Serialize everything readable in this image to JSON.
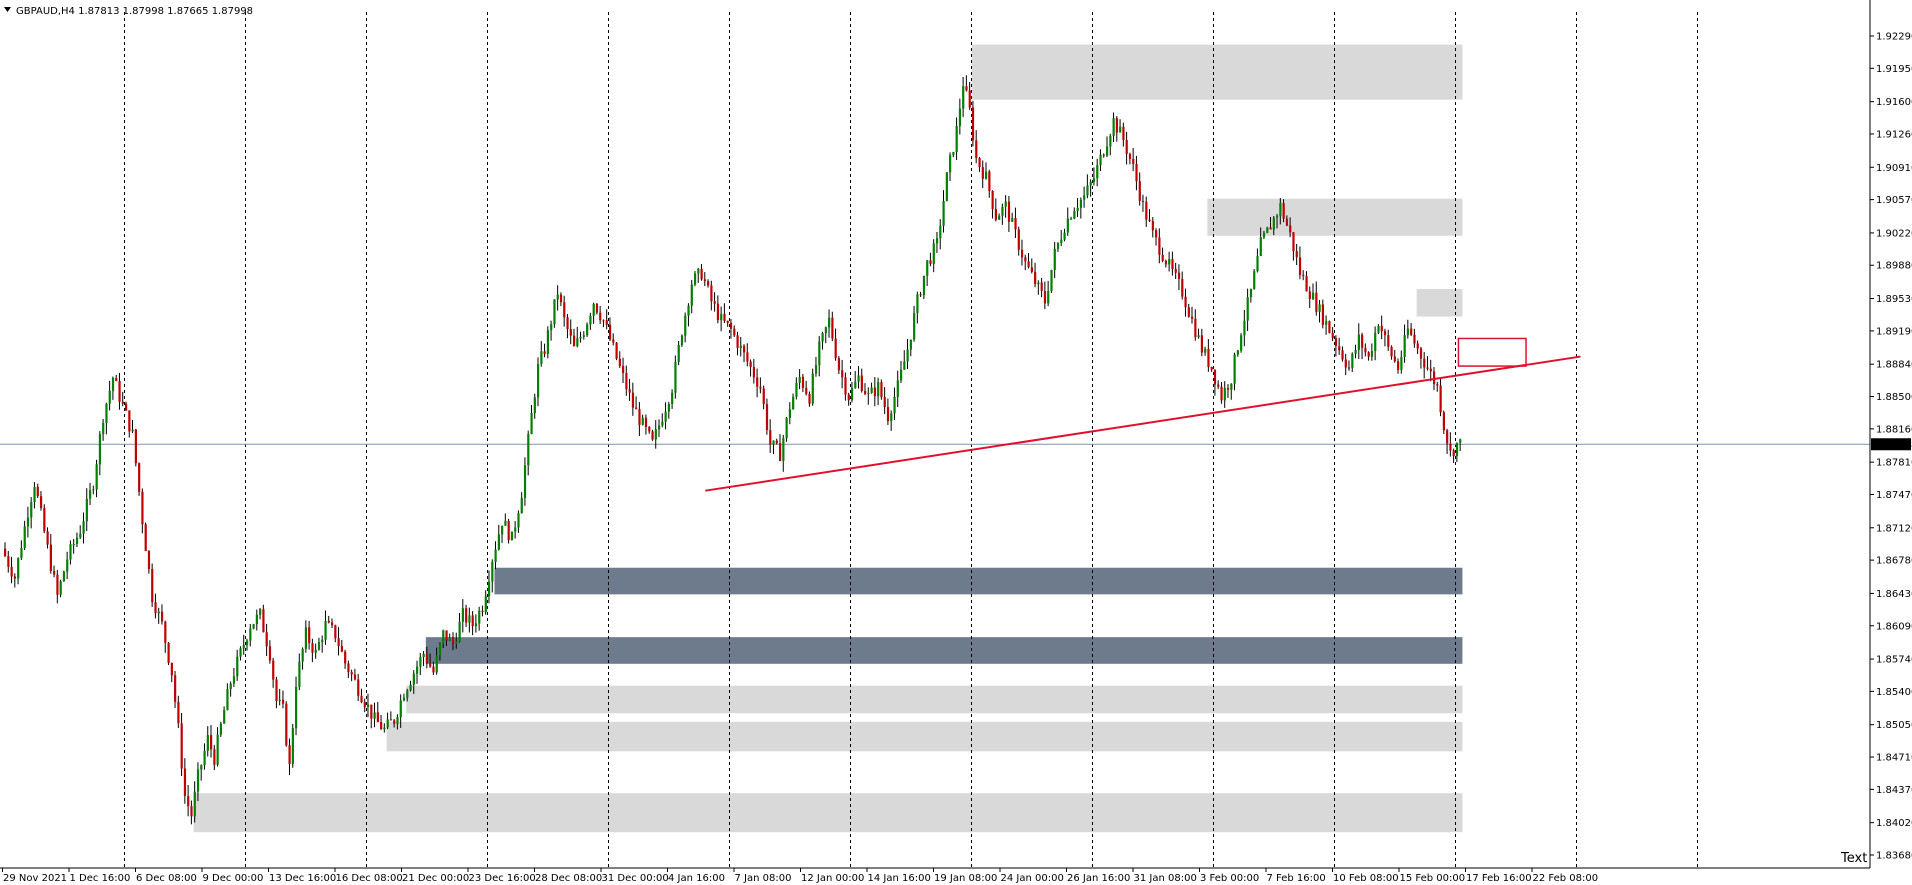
{
  "header": {
    "symbol_info": "GBPAUD,H4  1.87813 1.87998 1.87665 1.87998"
  },
  "corner_label": "Text",
  "colors": {
    "background": "#ffffff",
    "bull_candle": "#008000",
    "bear_candle": "#c00000",
    "wick": "#000000",
    "light_zone": "#d9d9d9",
    "dark_zone": "#6d7b8d",
    "trendline": "#e0102f",
    "price_marker_bg": "#000000",
    "price_marker_text": "#ffffff",
    "price_line": "#7f93b0"
  },
  "chart_data": {
    "type": "candlestick",
    "symbol": "GBPAUD",
    "timeframe": "H4",
    "ylim": [
      1.8368,
      1.931
    ],
    "y_ticks": [
      "1.92290",
      "1.91950",
      "1.91600",
      "1.91260",
      "1.90910",
      "1.90570",
      "1.90220",
      "1.89880",
      "1.89530",
      "1.89190",
      "1.88840",
      "1.88500",
      "1.88160",
      "1.87998",
      "1.87810",
      "1.87470",
      "1.87120",
      "1.86780",
      "1.86430",
      "1.86090",
      "1.85740",
      "1.85400",
      "1.85050",
      "1.84710",
      "1.84370",
      "1.84020",
      "1.83680"
    ],
    "y_tick_values": [
      1.9229,
      1.9195,
      1.916,
      1.9126,
      1.9091,
      1.9057,
      1.9022,
      1.8988,
      1.8953,
      1.8919,
      1.8884,
      1.885,
      1.8816,
      1.87998,
      1.8781,
      1.8747,
      1.8712,
      1.8678,
      1.8643,
      1.8609,
      1.8574,
      1.854,
      1.8505,
      1.8471,
      1.8437,
      1.8402,
      1.8368
    ],
    "current_price": 1.87998,
    "x_labels": [
      "29 Nov 2021",
      "1 Dec 16:00",
      "6 Dec 08:00",
      "9 Dec 00:00",
      "13 Dec 16:00",
      "16 Dec 08:00",
      "21 Dec 00:00",
      "23 Dec 16:00",
      "28 Dec 08:00",
      "31 Dec 00:00",
      "4 Jan 16:00",
      "7 Jan 08:00",
      "12 Jan 00:00",
      "14 Jan 16:00",
      "19 Jan 08:00",
      "24 Jan 00:00",
      "26 Jan 16:00",
      "31 Jan 08:00",
      "3 Feb 00:00",
      "7 Feb 16:00",
      "10 Feb 08:00",
      "15 Feb 00:00",
      "17 Feb 16:00",
      "22 Feb 08:00"
    ],
    "price_path": [
      [
        0,
        1.869
      ],
      [
        4,
        1.866
      ],
      [
        8,
        1.873
      ],
      [
        10,
        1.876
      ],
      [
        14,
        1.869
      ],
      [
        17,
        1.864
      ],
      [
        20,
        1.868
      ],
      [
        24,
        1.871
      ],
      [
        28,
        1.876
      ],
      [
        31,
        1.883
      ],
      [
        34,
        1.887
      ],
      [
        37,
        1.884
      ],
      [
        40,
        1.881
      ],
      [
        43,
        1.872
      ],
      [
        46,
        1.864
      ],
      [
        49,
        1.861
      ],
      [
        52,
        1.856
      ],
      [
        54,
        1.85
      ],
      [
        56,
        1.843
      ],
      [
        58,
        1.841
      ],
      [
        60,
        1.845
      ],
      [
        63,
        1.849
      ],
      [
        65,
        1.847
      ],
      [
        68,
        1.852
      ],
      [
        70,
        1.855
      ],
      [
        73,
        1.858
      ],
      [
        76,
        1.861
      ],
      [
        79,
        1.862
      ],
      [
        82,
        1.858
      ],
      [
        84,
        1.853
      ],
      [
        86,
        1.852
      ],
      [
        88,
        1.846
      ],
      [
        90,
        1.855
      ],
      [
        93,
        1.86
      ],
      [
        96,
        1.858
      ],
      [
        99,
        1.861
      ],
      [
        102,
        1.86
      ],
      [
        105,
        1.857
      ],
      [
        108,
        1.855
      ],
      [
        111,
        1.853
      ],
      [
        114,
        1.851
      ],
      [
        117,
        1.85
      ],
      [
        120,
        1.851
      ],
      [
        123,
        1.854
      ],
      [
        126,
        1.856
      ],
      [
        129,
        1.858
      ],
      [
        132,
        1.856
      ],
      [
        135,
        1.86
      ],
      [
        138,
        1.859
      ],
      [
        141,
        1.862
      ],
      [
        144,
        1.861
      ],
      [
        147,
        1.863
      ],
      [
        150,
        1.868
      ],
      [
        153,
        1.872
      ],
      [
        156,
        1.87
      ],
      [
        159,
        1.875
      ],
      [
        162,
        1.883
      ],
      [
        164,
        1.888
      ],
      [
        166,
        1.89
      ],
      [
        168,
        1.893
      ],
      [
        170,
        1.896
      ],
      [
        172,
        1.893
      ],
      [
        175,
        1.89
      ],
      [
        178,
        1.892
      ],
      [
        181,
        1.895
      ],
      [
        184,
        1.893
      ],
      [
        187,
        1.89
      ],
      [
        190,
        1.887
      ],
      [
        193,
        1.884
      ],
      [
        196,
        1.882
      ],
      [
        199,
        1.88
      ],
      [
        202,
        1.883
      ],
      [
        205,
        1.886
      ],
      [
        208,
        1.892
      ],
      [
        211,
        1.897
      ],
      [
        214,
        1.898
      ],
      [
        217,
        1.895
      ],
      [
        220,
        1.893
      ],
      [
        223,
        1.892
      ],
      [
        226,
        1.89
      ],
      [
        229,
        1.888
      ],
      [
        232,
        1.886
      ],
      [
        235,
        1.88
      ],
      [
        238,
        1.879
      ],
      [
        241,
        1.884
      ],
      [
        244,
        1.887
      ],
      [
        247,
        1.885
      ],
      [
        250,
        1.89
      ],
      [
        253,
        1.893
      ],
      [
        256,
        1.888
      ],
      [
        259,
        1.885
      ],
      [
        262,
        1.887
      ],
      [
        265,
        1.885
      ],
      [
        268,
        1.886
      ],
      [
        271,
        1.883
      ],
      [
        274,
        1.886
      ],
      [
        277,
        1.89
      ],
      [
        280,
        1.895
      ],
      [
        283,
        1.899
      ],
      [
        286,
        1.901
      ],
      [
        289,
        1.908
      ],
      [
        292,
        1.913
      ],
      [
        294,
        1.918
      ],
      [
        296,
        1.915
      ],
      [
        298,
        1.91
      ],
      [
        301,
        1.908
      ],
      [
        304,
        1.904
      ],
      [
        307,
        1.905
      ],
      [
        310,
        1.902
      ],
      [
        313,
        1.899
      ],
      [
        316,
        1.897
      ],
      [
        319,
        1.895
      ],
      [
        322,
        1.9
      ],
      [
        325,
        1.903
      ],
      [
        328,
        1.905
      ],
      [
        331,
        1.906
      ],
      [
        334,
        1.908
      ],
      [
        337,
        1.911
      ],
      [
        340,
        1.914
      ],
      [
        343,
        1.912
      ],
      [
        346,
        1.909
      ],
      [
        349,
        1.905
      ],
      [
        352,
        1.902
      ],
      [
        355,
        1.9
      ],
      [
        358,
        1.898
      ],
      [
        361,
        1.896
      ],
      [
        364,
        1.893
      ],
      [
        367,
        1.89
      ],
      [
        370,
        1.888
      ],
      [
        373,
        1.885
      ],
      [
        376,
        1.887
      ],
      [
        379,
        1.892
      ],
      [
        382,
        1.896
      ],
      [
        385,
        1.901
      ],
      [
        388,
        1.903
      ],
      [
        391,
        1.905
      ],
      [
        394,
        1.902
      ],
      [
        397,
        1.898
      ],
      [
        400,
        1.896
      ],
      [
        403,
        1.894
      ],
      [
        406,
        1.892
      ],
      [
        409,
        1.89
      ],
      [
        412,
        1.888
      ],
      [
        415,
        1.891
      ],
      [
        418,
        1.889
      ],
      [
        421,
        1.893
      ],
      [
        424,
        1.89
      ],
      [
        427,
        1.888
      ],
      [
        430,
        1.892
      ],
      [
        433,
        1.89
      ],
      [
        436,
        1.888
      ],
      [
        439,
        1.886
      ],
      [
        441,
        1.882
      ],
      [
        443,
        1.879
      ],
      [
        445,
        1.88
      ]
    ],
    "horizontal_zones": [
      {
        "label": "",
        "type": "light",
        "top": 1.922,
        "bottom": 1.9162,
        "start_index": 296,
        "end_index": 446
      },
      {
        "label": "",
        "type": "light",
        "top": 1.9058,
        "bottom": 1.9019,
        "start_index": 368,
        "end_index": 446
      },
      {
        "label": "",
        "type": "light",
        "top": 1.8963,
        "bottom": 1.8934,
        "start_index": 432,
        "end_index": 446
      },
      {
        "label": "",
        "type": "dark",
        "top": 1.867,
        "bottom": 1.8642,
        "start_index": 150,
        "end_index": 446
      },
      {
        "label": "",
        "type": "dark",
        "top": 1.8597,
        "bottom": 1.8569,
        "start_index": 129,
        "end_index": 446
      },
      {
        "label": "",
        "type": "light",
        "top": 1.8546,
        "bottom": 1.8517,
        "start_index": 123,
        "end_index": 446
      },
      {
        "label": "",
        "type": "light",
        "top": 1.8508,
        "bottom": 1.8477,
        "start_index": 117,
        "end_index": 446
      },
      {
        "label": "",
        "type": "light",
        "top": 1.8433,
        "bottom": 1.8392,
        "start_index": 58,
        "end_index": 446
      }
    ],
    "trendline": {
      "x1_index": 212,
      "y1": 1.8751,
      "x2_index": 476,
      "y2": 1.8892
    },
    "marked_box": {
      "start_index": 435,
      "end_index": 452,
      "top": 1.8911,
      "bottom": 1.8882
    },
    "vertical_separators_index": [
      0,
      37,
      74,
      111,
      148,
      185,
      222,
      259,
      296,
      333,
      370,
      407,
      444,
      481
    ]
  }
}
